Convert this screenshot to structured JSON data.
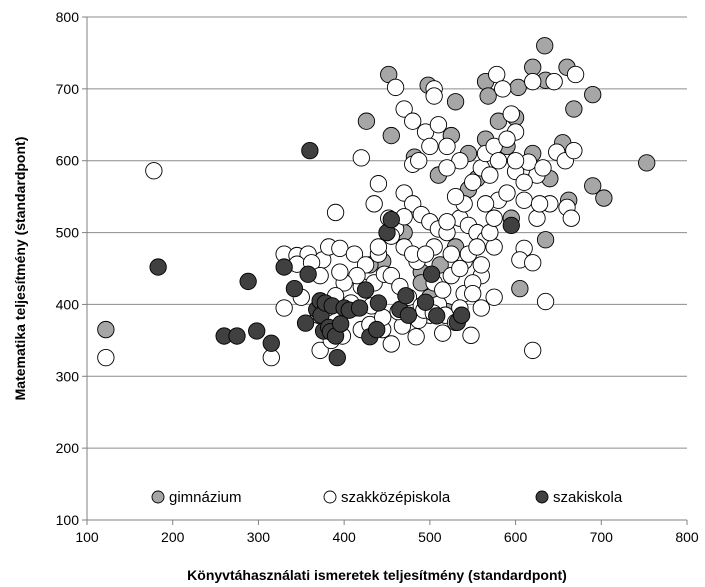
{
  "chart_data": {
    "type": "scatter",
    "xlabel": "Könyvtáhasználati ismeretek teljesítmény (standardpont)",
    "ylabel": "Matematika teljesítmény (standardpont)",
    "xlim": [
      100,
      800
    ],
    "ylim": [
      100,
      800
    ],
    "xticks": [
      100,
      200,
      300,
      400,
      500,
      600,
      700,
      800
    ],
    "yticks": [
      100,
      200,
      300,
      400,
      500,
      600,
      700,
      800
    ],
    "grid": "horizontal",
    "legend_position": "bottom-inside",
    "series": [
      {
        "name": "gimnázium",
        "color": "#a6a6a6",
        "points": [
          [
            122,
            365
          ],
          [
            426,
            655
          ],
          [
            452,
            720
          ],
          [
            498,
            705
          ],
          [
            530,
            682
          ],
          [
            565,
            710
          ],
          [
            568,
            690
          ],
          [
            603,
            702
          ],
          [
            620,
            730
          ],
          [
            634,
            760
          ],
          [
            635,
            712
          ],
          [
            660,
            730
          ],
          [
            668,
            672
          ],
          [
            690,
            692
          ],
          [
            580,
            655
          ],
          [
            545,
            610
          ],
          [
            565,
            630
          ],
          [
            600,
            660
          ],
          [
            620,
            610
          ],
          [
            655,
            625
          ],
          [
            640,
            575
          ],
          [
            662,
            545
          ],
          [
            690,
            565
          ],
          [
            703,
            548
          ],
          [
            753,
            597
          ],
          [
            595,
            520
          ],
          [
            635,
            490
          ],
          [
            605,
            422
          ],
          [
            455,
            635
          ],
          [
            482,
            605
          ],
          [
            510,
            580
          ],
          [
            555,
            575
          ],
          [
            590,
            620
          ],
          [
            445,
            460
          ],
          [
            490,
            445
          ],
          [
            530,
            480
          ],
          [
            500,
            410
          ],
          [
            520,
            390
          ],
          [
            430,
            455
          ],
          [
            470,
            500
          ],
          [
            525,
            635
          ],
          [
            545,
            560
          ],
          [
            512,
            455
          ],
          [
            465,
            390
          ],
          [
            490,
            430
          ]
        ]
      },
      {
        "name": "szakközépiskola",
        "color": "#ffffff",
        "points": [
          [
            122,
            326
          ],
          [
            178,
            586
          ],
          [
            315,
            326
          ],
          [
            330,
            470
          ],
          [
            345,
            468
          ],
          [
            358,
            470
          ],
          [
            375,
            462
          ],
          [
            382,
            480
          ],
          [
            395,
            478
          ],
          [
            412,
            470
          ],
          [
            330,
            395
          ],
          [
            350,
            410
          ],
          [
            372,
            336
          ],
          [
            385,
            350
          ],
          [
            398,
            356
          ],
          [
            412,
            395
          ],
          [
            420,
            425
          ],
          [
            435,
            430
          ],
          [
            447,
            442
          ],
          [
            445,
            365
          ],
          [
            455,
            345
          ],
          [
            468,
            370
          ],
          [
            484,
            355
          ],
          [
            500,
            385
          ],
          [
            510,
            400
          ],
          [
            518,
            385
          ],
          [
            530,
            375
          ],
          [
            548,
            357
          ],
          [
            560,
            395
          ],
          [
            575,
            410
          ],
          [
            390,
            528
          ],
          [
            420,
            604
          ],
          [
            435,
            540
          ],
          [
            440,
            568
          ],
          [
            460,
            505
          ],
          [
            470,
            555
          ],
          [
            480,
            540
          ],
          [
            490,
            525
          ],
          [
            500,
            515
          ],
          [
            510,
            505
          ],
          [
            520,
            500
          ],
          [
            535,
            520
          ],
          [
            545,
            510
          ],
          [
            555,
            500
          ],
          [
            565,
            490
          ],
          [
            575,
            480
          ],
          [
            560,
            440
          ],
          [
            540,
            460
          ],
          [
            525,
            470
          ],
          [
            505,
            480
          ],
          [
            485,
            460
          ],
          [
            470,
            480
          ],
          [
            455,
            495
          ],
          [
            440,
            470
          ],
          [
            425,
            455
          ],
          [
            415,
            440
          ],
          [
            400,
            430
          ],
          [
            390,
            412
          ],
          [
            380,
            395
          ],
          [
            370,
            385
          ],
          [
            460,
            702
          ],
          [
            470,
            672
          ],
          [
            480,
            655
          ],
          [
            495,
            640
          ],
          [
            505,
            700
          ],
          [
            505,
            690
          ],
          [
            520,
            620
          ],
          [
            535,
            600
          ],
          [
            550,
            570
          ],
          [
            560,
            590
          ],
          [
            565,
            610
          ],
          [
            575,
            620
          ],
          [
            578,
            720
          ],
          [
            585,
            700
          ],
          [
            595,
            665
          ],
          [
            620,
            710
          ],
          [
            645,
            710
          ],
          [
            670,
            720
          ],
          [
            600,
            640
          ],
          [
            610,
            590
          ],
          [
            625,
            580
          ],
          [
            640,
            540
          ],
          [
            660,
            535
          ],
          [
            665,
            520
          ],
          [
            625,
            520
          ],
          [
            610,
            478
          ],
          [
            605,
            462
          ],
          [
            620,
            458
          ],
          [
            635,
            404
          ],
          [
            620,
            336
          ],
          [
            520,
            515
          ],
          [
            540,
            540
          ],
          [
            480,
            595
          ],
          [
            487,
            600
          ],
          [
            500,
            620
          ],
          [
            510,
            650
          ],
          [
            520,
            590
          ],
          [
            530,
            550
          ],
          [
            455,
            440
          ],
          [
            465,
            425
          ],
          [
            475,
            410
          ],
          [
            490,
            398
          ],
          [
            540,
            415
          ],
          [
            550,
            430
          ],
          [
            560,
            455
          ],
          [
            570,
            500
          ],
          [
            575,
            520
          ],
          [
            580,
            545
          ],
          [
            590,
            555
          ],
          [
            600,
            585
          ],
          [
            610,
            570
          ],
          [
            615,
            598
          ],
          [
            632,
            590
          ],
          [
            648,
            612
          ],
          [
            658,
            600
          ],
          [
            668,
            614
          ],
          [
            345,
            456
          ],
          [
            362,
            458
          ],
          [
            372,
            440
          ],
          [
            395,
            445
          ],
          [
            408,
            402
          ],
          [
            432,
            398
          ],
          [
            440,
            480
          ],
          [
            452,
            520
          ],
          [
            470,
            522
          ],
          [
            480,
            470
          ],
          [
            495,
            470
          ],
          [
            505,
            430
          ],
          [
            515,
            420
          ],
          [
            525,
            440
          ],
          [
            535,
            450
          ],
          [
            545,
            470
          ],
          [
            555,
            480
          ],
          [
            565,
            540
          ],
          [
            570,
            580
          ],
          [
            580,
            600
          ],
          [
            590,
            630
          ],
          [
            600,
            600
          ],
          [
            610,
            545
          ],
          [
            628,
            540
          ],
          [
            420,
            365
          ],
          [
            430,
            372
          ],
          [
            445,
            382
          ],
          [
            463,
            390
          ],
          [
            487,
            378
          ],
          [
            493,
            392
          ],
          [
            504,
            388
          ],
          [
            515,
            360
          ],
          [
            535,
            395
          ],
          [
            550,
            415
          ]
        ]
      },
      {
        "name": "szakiskola",
        "color": "#404040",
        "points": [
          [
            183,
            452
          ],
          [
            260,
            356
          ],
          [
            275,
            356
          ],
          [
            288,
            432
          ],
          [
            298,
            363
          ],
          [
            315,
            346
          ],
          [
            330,
            452
          ],
          [
            342,
            422
          ],
          [
            355,
            374
          ],
          [
            358,
            442
          ],
          [
            360,
            614
          ],
          [
            368,
            393
          ],
          [
            372,
            405
          ],
          [
            373,
            385
          ],
          [
            376,
            363
          ],
          [
            378,
            402
          ],
          [
            382,
            368
          ],
          [
            384,
            362
          ],
          [
            386,
            398
          ],
          [
            390,
            356
          ],
          [
            392,
            326
          ],
          [
            396,
            373
          ],
          [
            400,
            395
          ],
          [
            406,
            392
          ],
          [
            418,
            395
          ],
          [
            425,
            420
          ],
          [
            430,
            355
          ],
          [
            438,
            365
          ],
          [
            440,
            402
          ],
          [
            450,
            500
          ],
          [
            455,
            518
          ],
          [
            465,
            393
          ],
          [
            472,
            412
          ],
          [
            475,
            385
          ],
          [
            495,
            403
          ],
          [
            502,
            442
          ],
          [
            508,
            384
          ],
          [
            532,
            375
          ],
          [
            537,
            385
          ],
          [
            595,
            510
          ]
        ]
      }
    ]
  }
}
